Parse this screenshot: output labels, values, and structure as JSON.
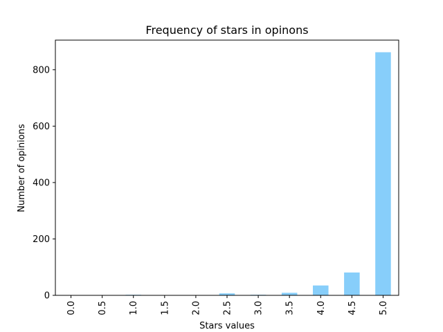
{
  "chart_data": {
    "type": "bar",
    "title": "Frequency of stars in opinons",
    "xlabel": "Stars values",
    "ylabel": "Number of opinions",
    "categories": [
      "0.0",
      "0.5",
      "1.0",
      "1.5",
      "2.0",
      "2.5",
      "3.0",
      "3.5",
      "4.0",
      "4.5",
      "5.0"
    ],
    "values": [
      0,
      0,
      2,
      0,
      0,
      7,
      2,
      9,
      35,
      81,
      862
    ],
    "ylim": [
      0,
      905
    ],
    "yticks": [
      0,
      200,
      400,
      600,
      800
    ],
    "ytick_labels": [
      "0",
      "200",
      "400",
      "600",
      "800"
    ],
    "bar_color": "#87cefa",
    "grid": false,
    "legend": "none"
  }
}
